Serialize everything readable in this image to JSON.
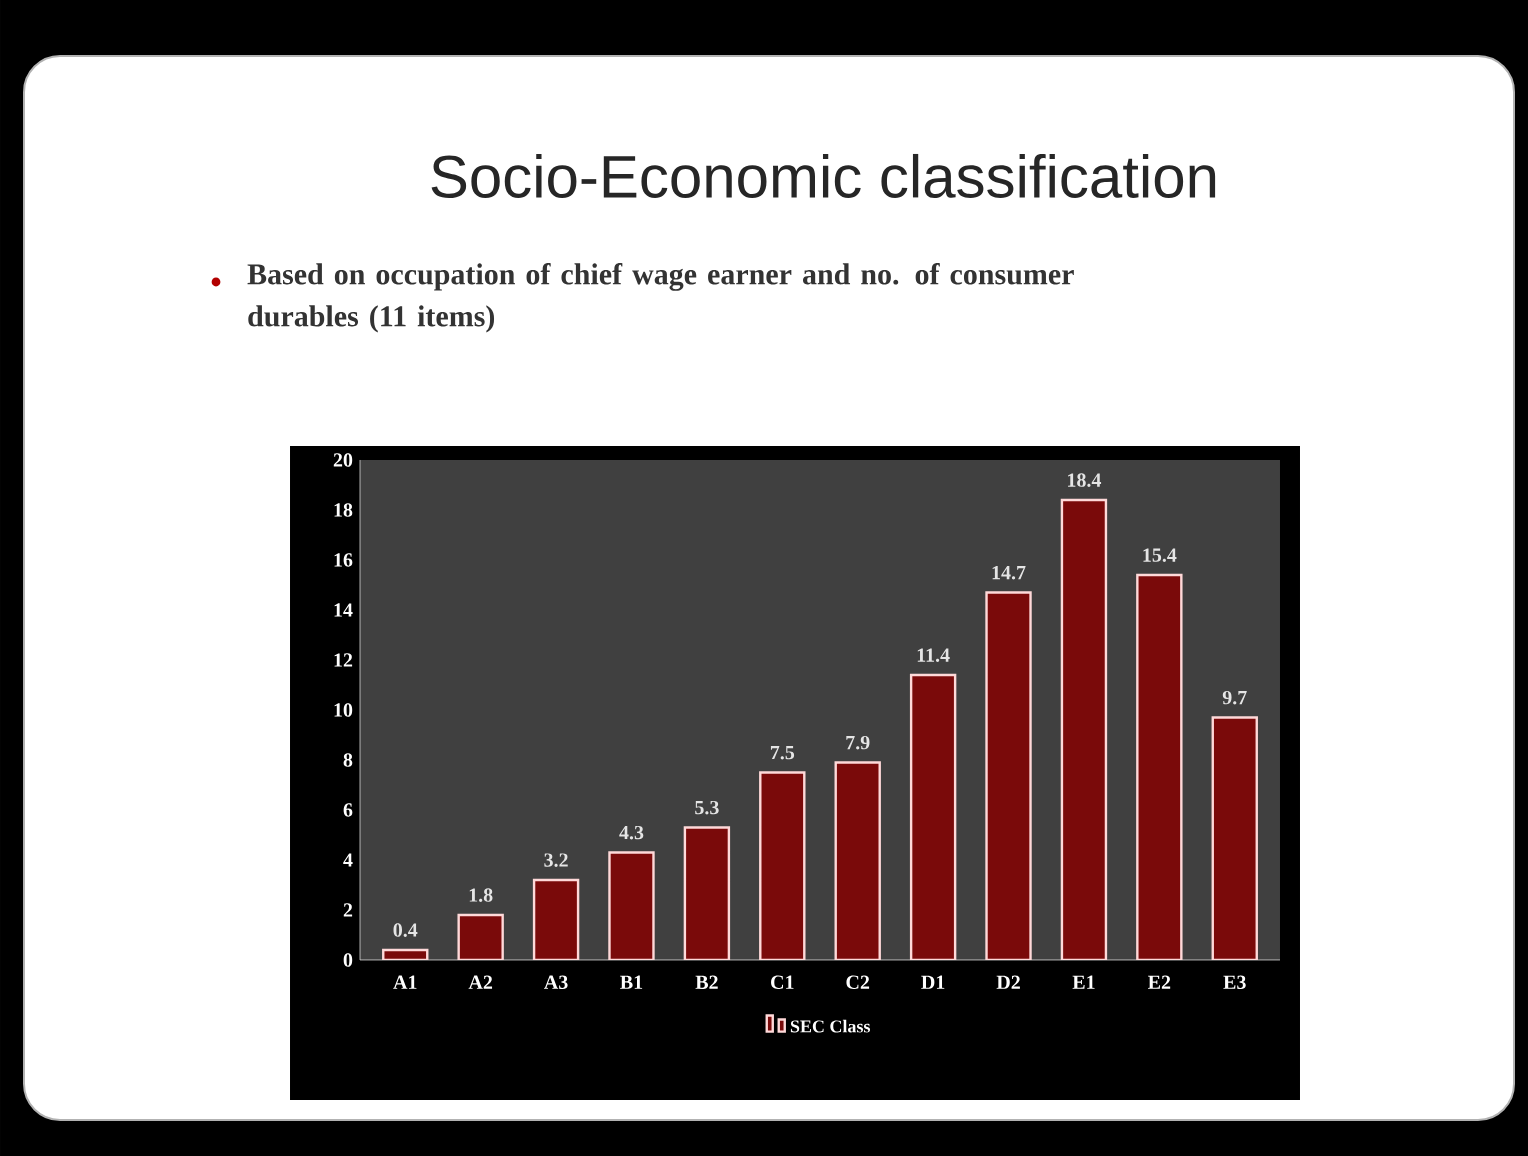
{
  "chart_data": {
    "type": "bar",
    "title": "Socio-Economic classification",
    "subtitle": "Based on occupation of chief wage earner and no. of consumer durables (11 items)",
    "categories": [
      "A1",
      "A2",
      "A3",
      "B1",
      "B2",
      "C1",
      "C2",
      "D1",
      "D2",
      "E1",
      "E2",
      "E3"
    ],
    "series": [
      {
        "name": "SEC Class",
        "color": "#7a0a0a",
        "values": [
          0.4,
          1.8,
          3.2,
          4.3,
          5.3,
          7.5,
          7.9,
          11.4,
          14.7,
          18.4,
          15.4,
          9.7
        ]
      }
    ],
    "ylim": [
      0,
      20
    ],
    "yticks": [
      0,
      2,
      4,
      6,
      8,
      10,
      12,
      14,
      16,
      18,
      20
    ],
    "data_labels": true,
    "legend": "bottom",
    "grid": false
  }
}
